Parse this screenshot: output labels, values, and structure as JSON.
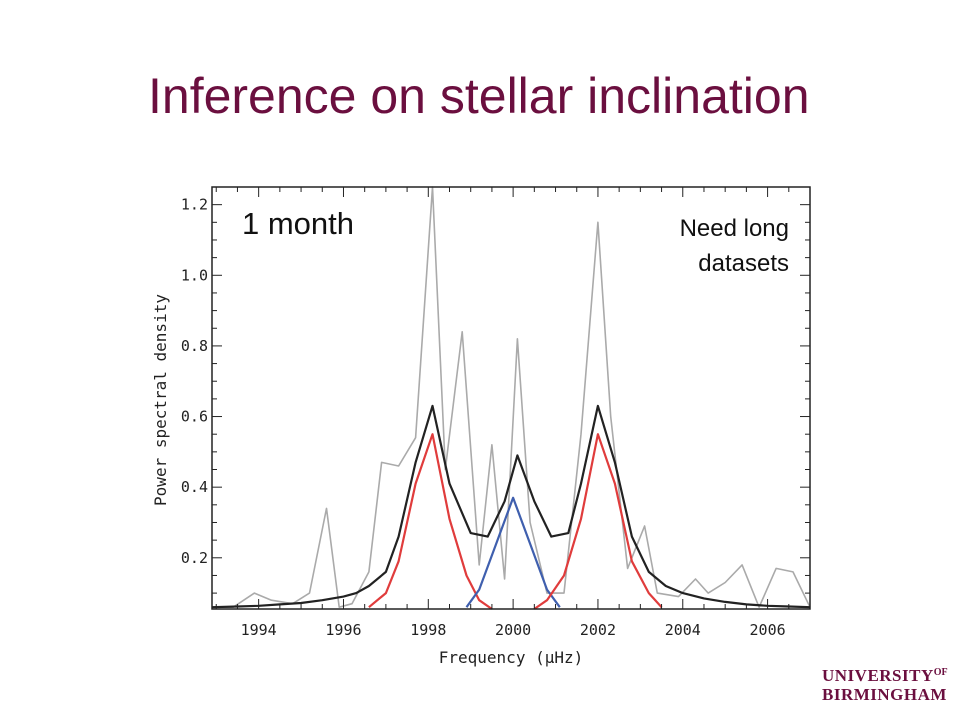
{
  "slide": {
    "title": "Inference on stellar inclination"
  },
  "logo": {
    "line1": "UNIVERSITY",
    "of": "OF",
    "line2": "BIRMINGHAM"
  },
  "chart_data": {
    "type": "line",
    "title": "",
    "xlabel": "Frequency (μHz)",
    "ylabel": "Power spectral density",
    "xlim": [
      1992.9,
      2007.0
    ],
    "ylim": [
      0.055,
      1.25
    ],
    "xticks": [
      1994,
      1996,
      1998,
      2000,
      2002,
      2004,
      2006
    ],
    "yticks": [
      0.2,
      0.4,
      0.6,
      0.8,
      1.0,
      1.2
    ],
    "xtick_labels": [
      "1994",
      "1996",
      "1998",
      "2000",
      "2002",
      "2004",
      "2006"
    ],
    "ytick_labels": [
      "0.2",
      "0.4",
      "0.6",
      "0.8",
      "1.0",
      "1.2"
    ],
    "annotations": [
      {
        "text": "1 month",
        "position": "top-left"
      },
      {
        "text": "Need long",
        "position": "top-right"
      },
      {
        "text": "datasets",
        "position": "top-right"
      }
    ],
    "grid": false,
    "series": [
      {
        "role": "power-spectrum",
        "color": "#aaaaaa",
        "x": [
          1992.9,
          1993.4,
          1993.9,
          1994.3,
          1994.8,
          1995.2,
          1995.6,
          1995.9,
          1996.2,
          1996.6,
          1996.9,
          1997.3,
          1997.7,
          1998.1,
          1998.4,
          1998.8,
          1999.2,
          1999.5,
          1999.8,
          2000.1,
          2000.4,
          2000.8,
          2001.2,
          2001.6,
          2002.0,
          2002.3,
          2002.7,
          2003.1,
          2003.4,
          2003.9,
          2004.3,
          2004.6,
          2005.0,
          2005.4,
          2005.8,
          2006.2,
          2006.6,
          2007.0
        ],
        "y": [
          0.06,
          0.06,
          0.1,
          0.08,
          0.07,
          0.1,
          0.34,
          0.06,
          0.07,
          0.16,
          0.47,
          0.46,
          0.54,
          1.25,
          0.45,
          0.84,
          0.18,
          0.52,
          0.14,
          0.82,
          0.3,
          0.1,
          0.1,
          0.55,
          1.15,
          0.6,
          0.17,
          0.29,
          0.1,
          0.09,
          0.14,
          0.1,
          0.13,
          0.18,
          0.06,
          0.17,
          0.16,
          0.06
        ]
      },
      {
        "role": "model-total",
        "color": "#222222",
        "x": [
          1992.9,
          1993.5,
          1994.0,
          1994.5,
          1995.0,
          1995.5,
          1996.0,
          1996.3,
          1996.6,
          1997.0,
          1997.3,
          1997.7,
          1998.1,
          1998.5,
          1999.0,
          1999.4,
          1999.8,
          2000.1,
          2000.5,
          2000.9,
          2001.3,
          2001.6,
          2002.0,
          2002.4,
          2002.8,
          2003.2,
          2003.6,
          2004.0,
          2004.5,
          2005.0,
          2005.5,
          2006.0,
          2006.5,
          2007.0
        ],
        "y": [
          0.06,
          0.062,
          0.064,
          0.068,
          0.072,
          0.08,
          0.09,
          0.1,
          0.12,
          0.16,
          0.26,
          0.47,
          0.63,
          0.41,
          0.27,
          0.26,
          0.36,
          0.49,
          0.36,
          0.26,
          0.27,
          0.41,
          0.63,
          0.47,
          0.26,
          0.16,
          0.12,
          0.1,
          0.085,
          0.075,
          0.068,
          0.064,
          0.062,
          0.06
        ]
      },
      {
        "role": "mode-component-1",
        "color": "#e03c3c",
        "x": [
          1996.6,
          1997.0,
          1997.3,
          1997.7,
          1998.1,
          1998.5,
          1998.9,
          1999.2,
          1999.5
        ],
        "y": [
          0.06,
          0.1,
          0.19,
          0.41,
          0.55,
          0.31,
          0.15,
          0.08,
          0.055
        ]
      },
      {
        "role": "mode-component-0",
        "color": "#3f5fae",
        "x": [
          1998.9,
          1999.2,
          1999.6,
          2000.0,
          2000.4,
          2000.8,
          2001.1
        ],
        "y": [
          0.06,
          0.11,
          0.24,
          0.37,
          0.24,
          0.11,
          0.06
        ]
      },
      {
        "role": "mode-component-2",
        "color": "#e03c3c",
        "x": [
          2000.5,
          2000.8,
          2001.2,
          2001.6,
          2002.0,
          2002.4,
          2002.8,
          2003.2,
          2003.5
        ],
        "y": [
          0.055,
          0.08,
          0.15,
          0.31,
          0.55,
          0.41,
          0.19,
          0.1,
          0.06
        ]
      }
    ]
  }
}
